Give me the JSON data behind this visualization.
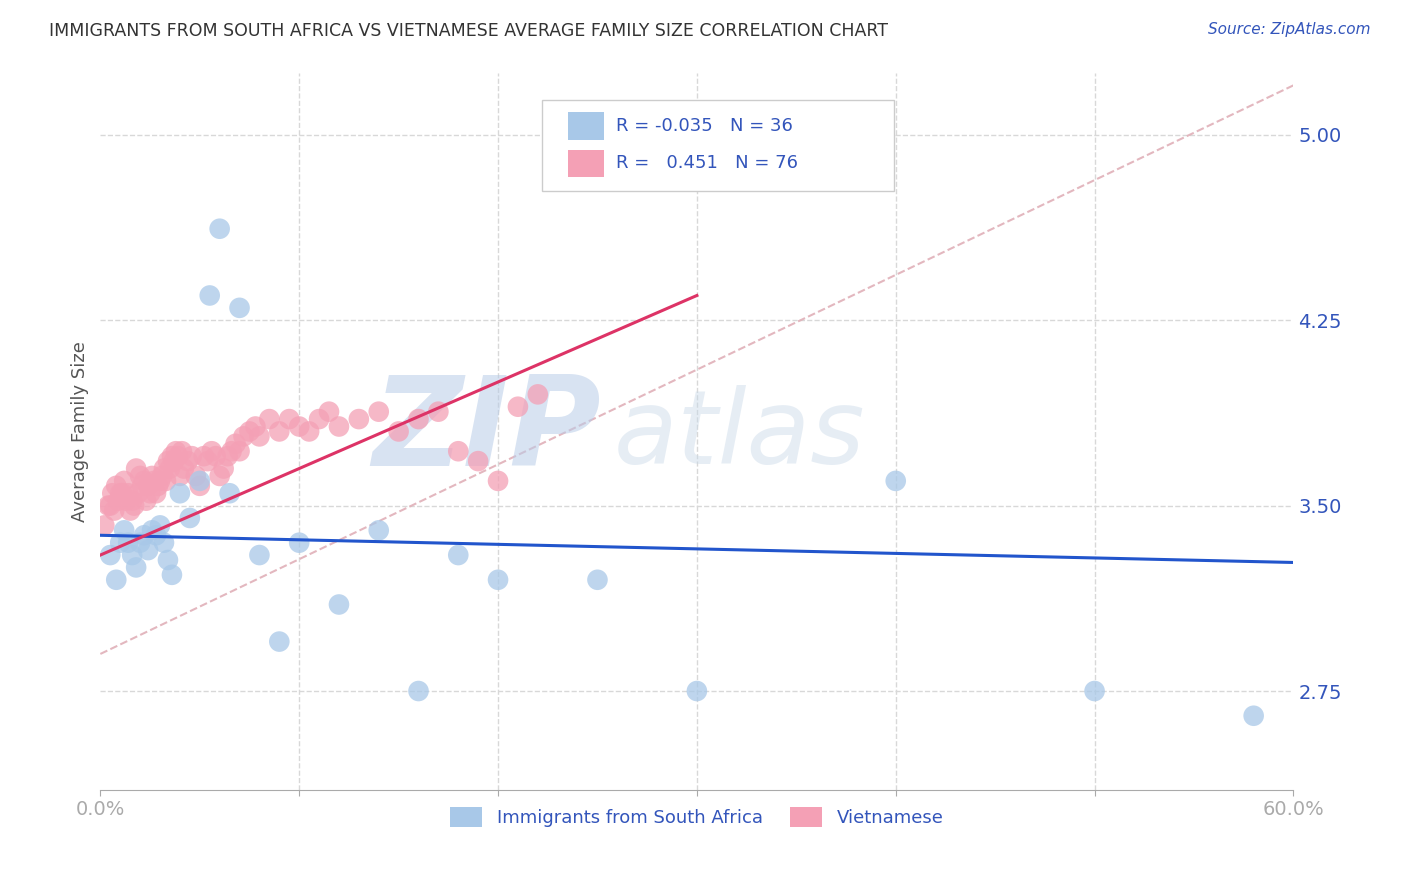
{
  "title": "IMMIGRANTS FROM SOUTH AFRICA VS VIETNAMESE AVERAGE FAMILY SIZE CORRELATION CHART",
  "source": "Source: ZipAtlas.com",
  "ylabel": "Average Family Size",
  "xlim": [
    0.0,
    0.6
  ],
  "ylim": [
    2.35,
    5.25
  ],
  "yticks_right": [
    2.75,
    3.5,
    4.25,
    5.0
  ],
  "r_blue": "-0.035",
  "n_blue": "36",
  "r_pink": "0.451",
  "n_pink": "76",
  "color_blue": "#a8c8e8",
  "color_pink": "#f4a0b5",
  "color_blue_line": "#2255cc",
  "color_pink_line": "#dd3366",
  "color_diag_line": "#e0b0b8",
  "watermark_zip": "ZIP",
  "watermark_atlas": "atlas",
  "legend_label_blue": "Immigrants from South Africa",
  "legend_label_pink": "Vietnamese",
  "blue_scatter_x": [
    0.005,
    0.008,
    0.01,
    0.012,
    0.014,
    0.016,
    0.018,
    0.02,
    0.022,
    0.024,
    0.026,
    0.028,
    0.03,
    0.032,
    0.034,
    0.036,
    0.04,
    0.045,
    0.05,
    0.055,
    0.06,
    0.065,
    0.07,
    0.08,
    0.09,
    0.1,
    0.12,
    0.14,
    0.16,
    0.18,
    0.2,
    0.25,
    0.3,
    0.4,
    0.5,
    0.58
  ],
  "blue_scatter_y": [
    3.3,
    3.2,
    3.35,
    3.4,
    3.35,
    3.3,
    3.25,
    3.35,
    3.38,
    3.32,
    3.4,
    3.38,
    3.42,
    3.35,
    3.28,
    3.22,
    3.55,
    3.45,
    3.6,
    4.35,
    4.62,
    3.55,
    4.3,
    3.3,
    2.95,
    3.35,
    3.1,
    3.4,
    2.75,
    3.3,
    3.2,
    3.2,
    2.75,
    3.6,
    2.75,
    2.65
  ],
  "pink_scatter_x": [
    0.002,
    0.004,
    0.006,
    0.008,
    0.01,
    0.012,
    0.014,
    0.016,
    0.018,
    0.02,
    0.022,
    0.024,
    0.026,
    0.028,
    0.03,
    0.032,
    0.034,
    0.036,
    0.038,
    0.04,
    0.042,
    0.044,
    0.046,
    0.048,
    0.05,
    0.052,
    0.054,
    0.056,
    0.058,
    0.06,
    0.062,
    0.064,
    0.066,
    0.068,
    0.07,
    0.072,
    0.075,
    0.078,
    0.08,
    0.085,
    0.09,
    0.095,
    0.1,
    0.105,
    0.11,
    0.115,
    0.12,
    0.13,
    0.14,
    0.15,
    0.16,
    0.17,
    0.18,
    0.19,
    0.2,
    0.21,
    0.22,
    0.005,
    0.007,
    0.009,
    0.011,
    0.013,
    0.015,
    0.017,
    0.019,
    0.021,
    0.023,
    0.025,
    0.027,
    0.029,
    0.031,
    0.033,
    0.035,
    0.037,
    0.039,
    0.041
  ],
  "pink_scatter_y": [
    3.42,
    3.5,
    3.55,
    3.58,
    3.55,
    3.6,
    3.55,
    3.52,
    3.65,
    3.62,
    3.6,
    3.58,
    3.62,
    3.55,
    3.6,
    3.65,
    3.68,
    3.7,
    3.72,
    3.62,
    3.65,
    3.68,
    3.7,
    3.62,
    3.58,
    3.7,
    3.68,
    3.72,
    3.7,
    3.62,
    3.65,
    3.7,
    3.72,
    3.75,
    3.72,
    3.78,
    3.8,
    3.82,
    3.78,
    3.85,
    3.8,
    3.85,
    3.82,
    3.8,
    3.85,
    3.88,
    3.82,
    3.85,
    3.88,
    3.8,
    3.85,
    3.88,
    3.72,
    3.68,
    3.6,
    3.9,
    3.95,
    3.5,
    3.48,
    3.52,
    3.55,
    3.52,
    3.48,
    3.5,
    3.55,
    3.58,
    3.52,
    3.55,
    3.6,
    3.58,
    3.62,
    3.6,
    3.65,
    3.68,
    3.7,
    3.72
  ],
  "background_color": "#ffffff",
  "grid_color": "#d8d8d8",
  "title_color": "#333333",
  "axis_label_color": "#555555",
  "tick_color_right": "#3355bb"
}
